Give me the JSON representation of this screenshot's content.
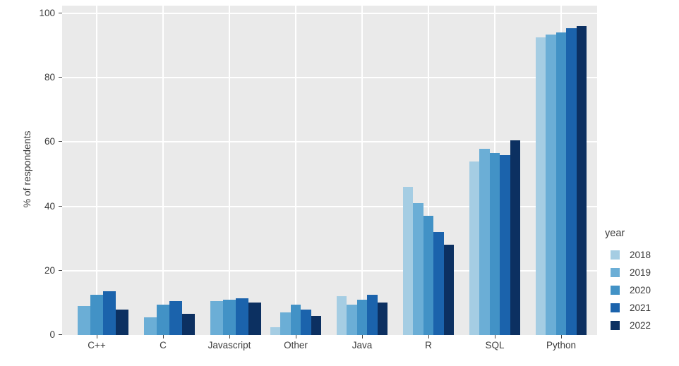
{
  "axes": {
    "y_title": "% of respondents",
    "y_ticks": [
      0,
      20,
      40,
      60,
      80,
      100
    ]
  },
  "legend": {
    "title": "year",
    "entries": [
      {
        "label": "2018",
        "color": "#a5cde3"
      },
      {
        "label": "2019",
        "color": "#6baed6"
      },
      {
        "label": "2020",
        "color": "#4292c6"
      },
      {
        "label": "2021",
        "color": "#1b63ac"
      },
      {
        "label": "2022",
        "color": "#0c3061"
      }
    ]
  },
  "chart_data": {
    "type": "bar",
    "title": "",
    "xlabel": "",
    "ylabel": "% of respondents",
    "ylim": [
      0,
      100
    ],
    "grid": true,
    "legend_position": "right",
    "legend_title": "year",
    "categories": [
      "C++",
      "C",
      "Javascript",
      "Other",
      "Java",
      "R",
      "SQL",
      "Python"
    ],
    "series": [
      {
        "name": "2018",
        "color": "#a5cde3",
        "values": [
          null,
          null,
          null,
          2.5,
          12,
          46,
          54,
          92.5
        ]
      },
      {
        "name": "2019",
        "color": "#6baed6",
        "values": [
          9,
          5.5,
          10.5,
          7,
          9.5,
          41,
          58,
          93.5
        ]
      },
      {
        "name": "2020",
        "color": "#4292c6",
        "values": [
          12.5,
          9.5,
          11,
          9.5,
          11,
          37,
          56.5,
          94
        ]
      },
      {
        "name": "2021",
        "color": "#1b63ac",
        "values": [
          13.5,
          10.5,
          11.5,
          8,
          12.5,
          32,
          56,
          95.5
        ]
      },
      {
        "name": "2022",
        "color": "#0c3061",
        "values": [
          8,
          6.5,
          10,
          6,
          10,
          28,
          60.5,
          96
        ]
      }
    ]
  }
}
